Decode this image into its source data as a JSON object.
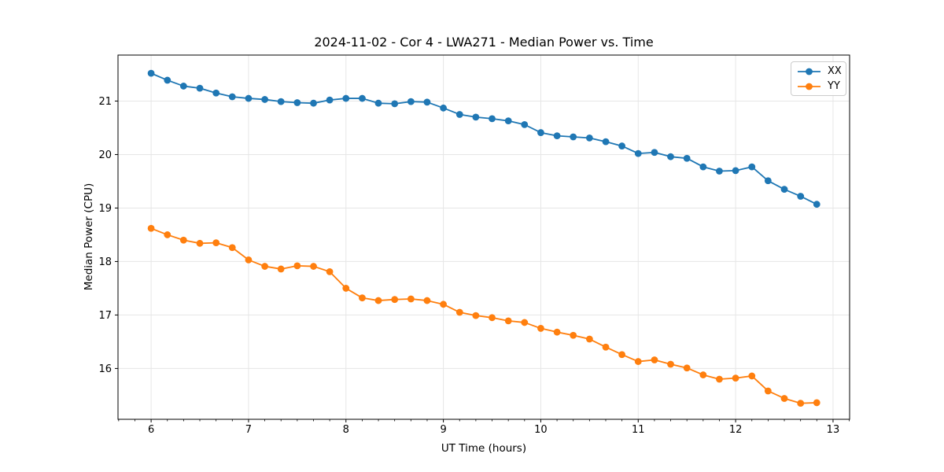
{
  "chart_data": {
    "type": "line",
    "title": "2024-11-02 - Cor 4 - LWA271 - Median Power vs. Time",
    "xlabel": "UT Time (hours)",
    "ylabel": "Median Power (CPU)",
    "xlim": [
      5.66,
      13.17
    ],
    "ylim": [
      15.05,
      21.86
    ],
    "x_ticks": [
      6,
      7,
      8,
      9,
      10,
      11,
      12,
      13
    ],
    "y_ticks": [
      16,
      17,
      18,
      19,
      20,
      21
    ],
    "x_minor_interval": 0.1667,
    "grid": "major-only",
    "grid_color": "#e6e6e6",
    "legend_position": "upper right",
    "marker": "circle",
    "x": [
      6.0,
      6.167,
      6.333,
      6.5,
      6.667,
      6.833,
      7.0,
      7.167,
      7.333,
      7.5,
      7.667,
      7.833,
      8.0,
      8.167,
      8.333,
      8.5,
      8.667,
      8.833,
      9.0,
      9.167,
      9.333,
      9.5,
      9.667,
      9.833,
      10.0,
      10.167,
      10.333,
      10.5,
      10.667,
      10.833,
      11.0,
      11.167,
      11.333,
      11.5,
      11.667,
      11.833,
      12.0,
      12.167,
      12.333,
      12.5,
      12.667,
      12.833
    ],
    "series": [
      {
        "name": "XX",
        "color": "#1f77b4",
        "values": [
          21.52,
          21.39,
          21.28,
          21.24,
          21.15,
          21.08,
          21.05,
          21.03,
          20.99,
          20.97,
          20.96,
          21.02,
          21.05,
          21.05,
          20.96,
          20.95,
          20.99,
          20.98,
          20.87,
          20.75,
          20.7,
          20.67,
          20.63,
          20.56,
          20.41,
          20.35,
          20.33,
          20.31,
          20.24,
          20.16,
          20.02,
          20.04,
          19.96,
          19.93,
          19.77,
          19.69,
          19.7,
          19.77,
          19.51,
          19.35,
          19.22,
          19.07
        ]
      },
      {
        "name": "YY",
        "color": "#ff7f0e",
        "values": [
          18.62,
          18.5,
          18.4,
          18.34,
          18.35,
          18.26,
          18.03,
          17.91,
          17.86,
          17.92,
          17.91,
          17.81,
          17.5,
          17.32,
          17.27,
          17.29,
          17.3,
          17.27,
          17.2,
          17.05,
          16.99,
          16.95,
          16.89,
          16.86,
          16.75,
          16.68,
          16.62,
          16.55,
          16.4,
          16.26,
          16.13,
          16.16,
          16.08,
          16.01,
          15.88,
          15.8,
          15.82,
          15.86,
          15.58,
          15.44,
          15.35,
          15.36
        ]
      }
    ]
  }
}
